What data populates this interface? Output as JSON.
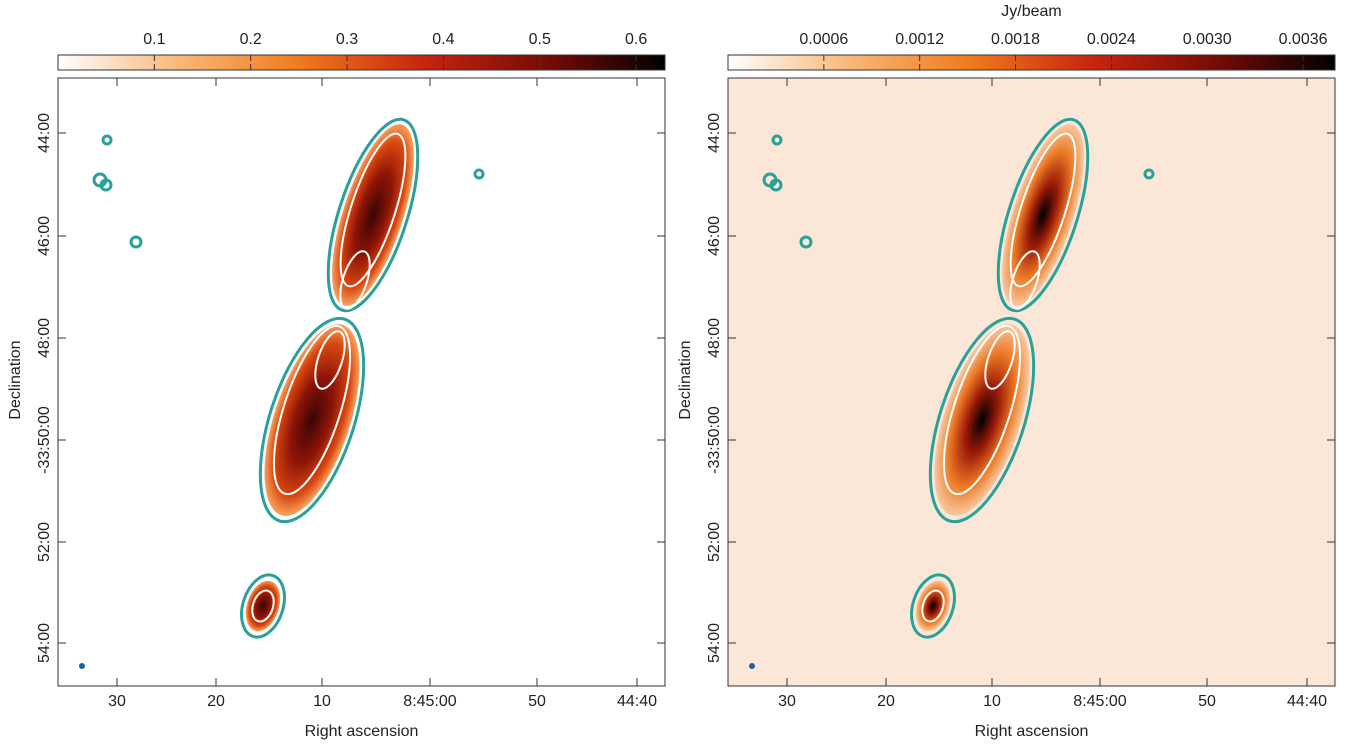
{
  "chart_data": [
    {
      "type": "image",
      "xlabel": "Right ascension",
      "ylabel": "Declination",
      "xticks": [
        "30",
        "20",
        "10",
        "8:45:00",
        "50",
        "44:40"
      ],
      "yticks": [
        "44:00",
        "46:00",
        "48:00",
        "-33:50:00",
        "52:00",
        "54:00"
      ],
      "background": "#ffffff",
      "colorbar": {
        "lim": [
          0,
          0.63
        ],
        "ticks": [
          0.1,
          0.2,
          0.3,
          0.4,
          0.5,
          0.6
        ],
        "colors": [
          "#ffffff",
          "#f9b777",
          "#f07a1c",
          "#c8250e",
          "#7a0b06",
          "#000000"
        ]
      }
    },
    {
      "type": "image",
      "xlabel": "Right ascension",
      "ylabel": "Declination",
      "xticks": [
        "30",
        "20",
        "10",
        "8:45:00",
        "50",
        "44:40"
      ],
      "yticks": [
        "44:00",
        "46:00",
        "48:00",
        "-33:50:00",
        "52:00",
        "54:00"
      ],
      "background": "#fbe7d8",
      "colorbar": {
        "label": "Jy/beam",
        "lim": [
          0,
          0.0038
        ],
        "ticks": [
          0.0006,
          0.0012,
          0.0018,
          0.0024,
          {
            "value": 0.003,
            "label": "0.0030"
          },
          0.0036
        ],
        "colors": [
          "#ffffff",
          "#f9b777",
          "#f07a1c",
          "#c8250e",
          "#7a0b06",
          "#000000"
        ]
      }
    }
  ]
}
